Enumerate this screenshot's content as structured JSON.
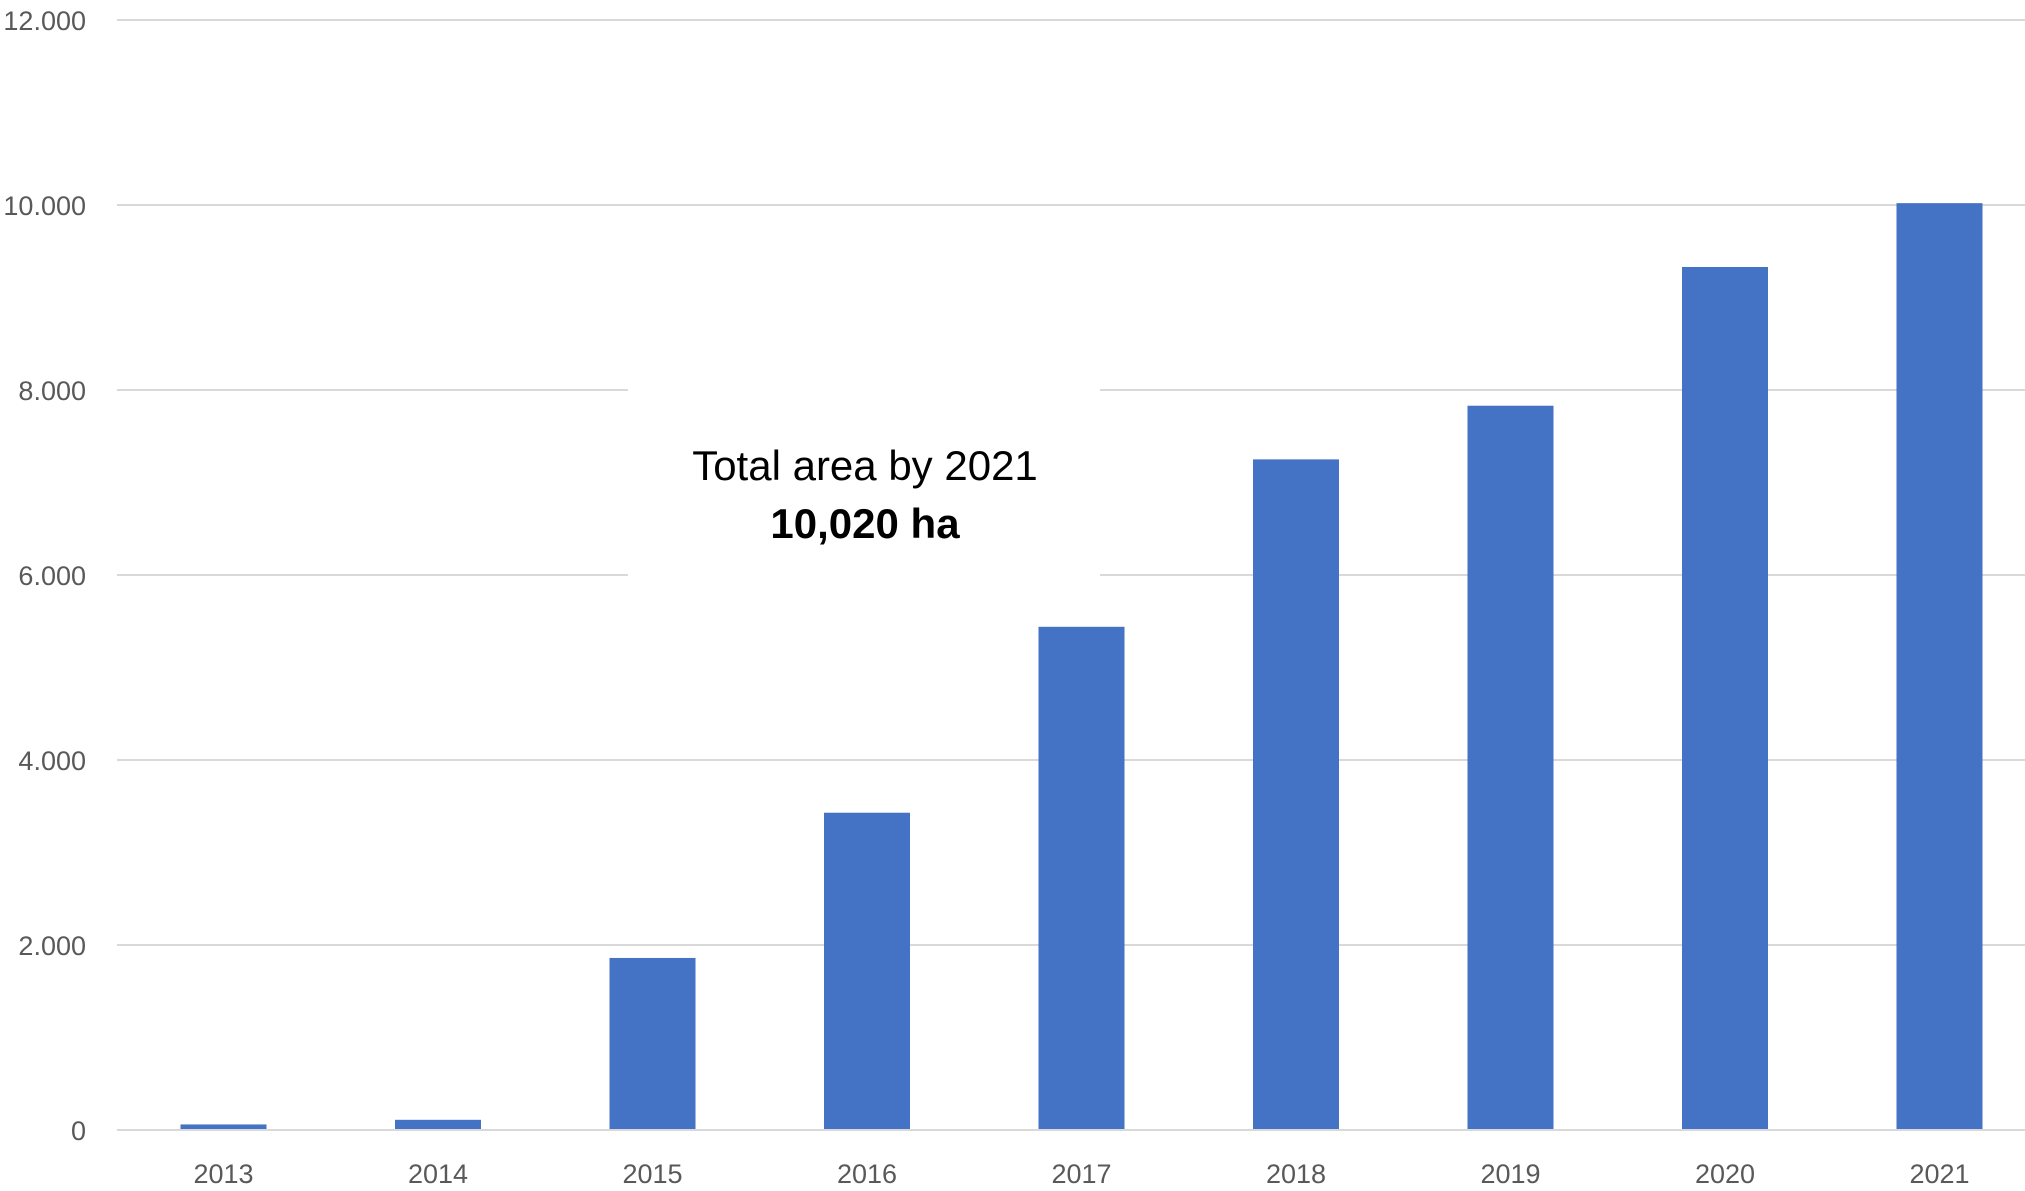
{
  "chart_data": {
    "type": "bar",
    "categories": [
      "2013",
      "2014",
      "2015",
      "2016",
      "2017",
      "2018",
      "2019",
      "2020",
      "2021"
    ],
    "values": [
      60,
      110,
      1860,
      3430,
      5440,
      7250,
      7830,
      9330,
      10020
    ],
    "ylim": [
      0,
      12000
    ],
    "yticks": [
      0,
      2000,
      4000,
      6000,
      8000,
      10000,
      12000
    ],
    "ytick_labels": [
      "0",
      "2.000",
      "4.000",
      "6.000",
      "8.000",
      "10.000",
      "12.000"
    ],
    "title": "",
    "xlabel": "",
    "ylabel": "",
    "grid": true,
    "legend": "none",
    "annotation": {
      "line1": "Total area by 2021",
      "line2": "10,020 ha"
    }
  },
  "colors": {
    "bar": "#4472C4",
    "grid": "#D9D9D9",
    "tick_text": "#595959",
    "annotation_text": "#000000",
    "background": "#FFFFFF"
  }
}
